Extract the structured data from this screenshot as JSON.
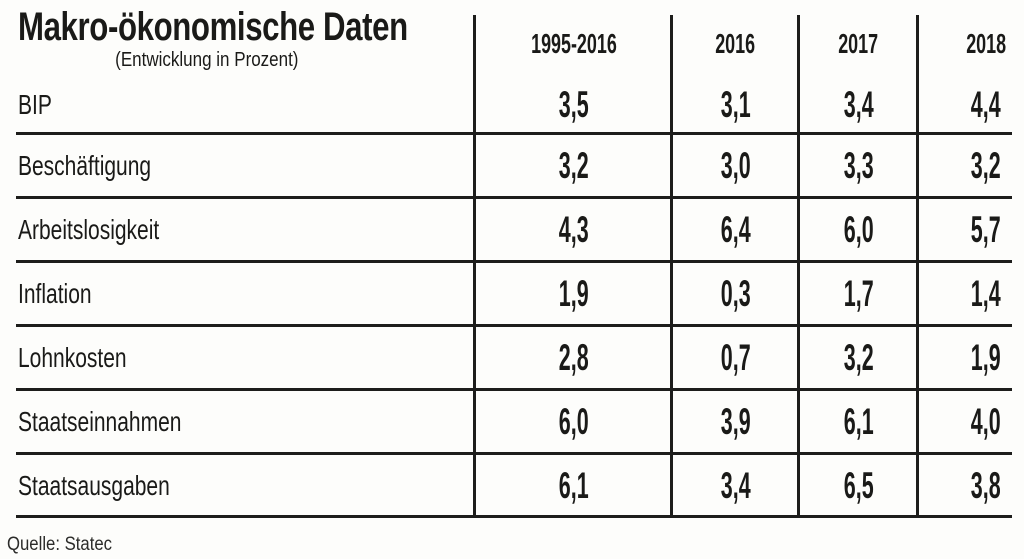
{
  "title": "Makro-ökonomische Daten",
  "subtitle": "(Entwicklung in Prozent)",
  "source": "Quelle: Statec",
  "colors": {
    "text": "#1a1a18",
    "line": "#1d1d1b",
    "background": "#fdfdfb"
  },
  "table": {
    "columns": [
      "1995-2016",
      "2016",
      "2017",
      "2018"
    ],
    "rows": [
      {
        "label": "BIP",
        "values": [
          "3,5",
          "3,1",
          "3,4",
          "4,4"
        ]
      },
      {
        "label": "Beschäftigung",
        "values": [
          "3,2",
          "3,0",
          "3,3",
          "3,2"
        ]
      },
      {
        "label": "Arbeitslosigkeit",
        "values": [
          "4,3",
          "6,4",
          "6,0",
          "5,7"
        ]
      },
      {
        "label": "Inflation",
        "values": [
          "1,9",
          "0,3",
          "1,7",
          "1,4"
        ]
      },
      {
        "label": "Lohnkosten",
        "values": [
          "2,8",
          "0,7",
          "3,2",
          "1,9"
        ]
      },
      {
        "label": "Staatseinnahmen",
        "values": [
          "6,0",
          "3,9",
          "6,1",
          "4,0"
        ]
      },
      {
        "label": "Staatsausgaben",
        "values": [
          "6,1",
          "3,4",
          "6,5",
          "3,8"
        ]
      }
    ]
  },
  "chart_data": {
    "type": "table",
    "title": "Makro-ökonomische Daten",
    "subtitle": "(Entwicklung in Prozent)",
    "categories": [
      "1995-2016",
      "2016",
      "2017",
      "2018"
    ],
    "series": [
      {
        "name": "BIP",
        "values": [
          3.5,
          3.1,
          3.4,
          4.4
        ]
      },
      {
        "name": "Beschäftigung",
        "values": [
          3.2,
          3.0,
          3.3,
          3.2
        ]
      },
      {
        "name": "Arbeitslosigkeit",
        "values": [
          4.3,
          6.4,
          6.0,
          5.7
        ]
      },
      {
        "name": "Inflation",
        "values": [
          1.9,
          0.3,
          1.7,
          1.4
        ]
      },
      {
        "name": "Lohnkosten",
        "values": [
          2.8,
          0.7,
          3.2,
          1.9
        ]
      },
      {
        "name": "Staatseinnahmen",
        "values": [
          6.0,
          3.9,
          6.1,
          4.0
        ]
      },
      {
        "name": "Staatsausgaben",
        "values": [
          6.1,
          3.4,
          6.5,
          3.8
        ]
      }
    ],
    "unit": "percent",
    "source": "Quelle: Statec"
  }
}
